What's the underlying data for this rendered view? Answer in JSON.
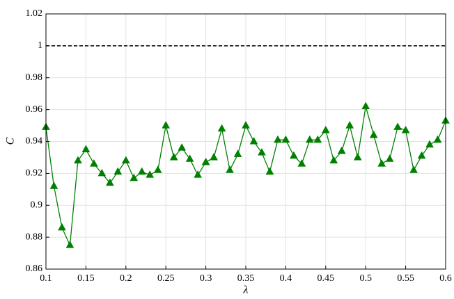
{
  "chart_data": {
    "type": "line",
    "xlabel": "λ",
    "ylabel": "C",
    "x": [
      0.1,
      0.11,
      0.12,
      0.13,
      0.14,
      0.15,
      0.16,
      0.17,
      0.18,
      0.19,
      0.2,
      0.21,
      0.22,
      0.23,
      0.24,
      0.25,
      0.26,
      0.27,
      0.28,
      0.29,
      0.3,
      0.31,
      0.32,
      0.33,
      0.34,
      0.35,
      0.36,
      0.37,
      0.38,
      0.39,
      0.4,
      0.41,
      0.42,
      0.43,
      0.44,
      0.45,
      0.46,
      0.47,
      0.48,
      0.49,
      0.5,
      0.51,
      0.52,
      0.53,
      0.54,
      0.55,
      0.56,
      0.57,
      0.58,
      0.59,
      0.6
    ],
    "series": [
      {
        "color": "#008000",
        "values": [
          0.949,
          0.912,
          0.886,
          0.875,
          0.928,
          0.935,
          0.926,
          0.92,
          0.914,
          0.921,
          0.928,
          0.917,
          0.921,
          0.919,
          0.922,
          0.95,
          0.93,
          0.936,
          0.929,
          0.919,
          0.927,
          0.93,
          0.948,
          0.922,
          0.932,
          0.95,
          0.94,
          0.933,
          0.921,
          0.941,
          0.941,
          0.931,
          0.926,
          0.941,
          0.941,
          0.947,
          0.928,
          0.934,
          0.95,
          0.93,
          0.962,
          0.944,
          0.926,
          0.929,
          0.949,
          0.947,
          0.922,
          0.931,
          0.938,
          0.941,
          0.953
        ]
      }
    ],
    "reference_line": {
      "value": 1,
      "color": "#000000"
    },
    "xlim": [
      0.1,
      0.6
    ],
    "xticks": [
      0.1,
      0.15,
      0.2,
      0.25,
      0.3,
      0.35,
      0.4,
      0.45,
      0.5,
      0.55,
      0.6
    ],
    "ylim": [
      0.86,
      1.02
    ],
    "yticks": [
      0.86,
      0.88,
      0.9,
      0.92,
      0.94,
      0.96,
      0.98,
      1,
      1.02
    ],
    "grid": true
  }
}
